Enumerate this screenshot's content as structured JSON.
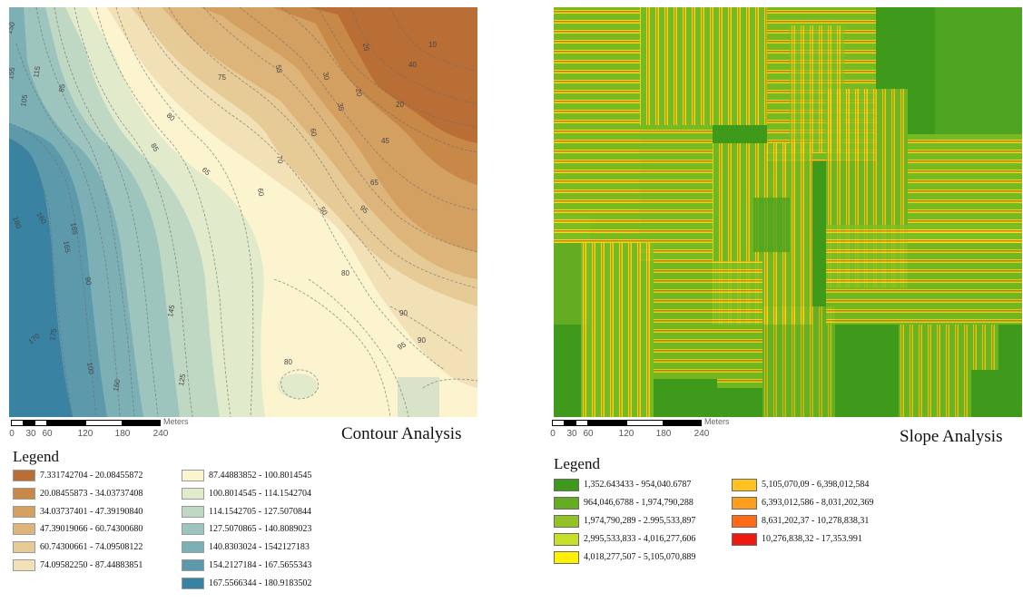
{
  "contour_panel": {
    "title": "Contour Analysis",
    "scale_bar": {
      "unit": "Meters",
      "ticks": [
        "0",
        "30",
        "60",
        "120",
        "180",
        "240"
      ]
    },
    "legend": {
      "title": "Legend",
      "items": [
        {
          "label": "7.331742704 - 20.08455872",
          "color": "#b86e35"
        },
        {
          "label": "20.08455873 - 34.03737408",
          "color": "#c78848"
        },
        {
          "label": "34.03737401 - 47.39190840",
          "color": "#d4a062"
        },
        {
          "label": "47.39019066 - 60.74300680",
          "color": "#ddb47a"
        },
        {
          "label": "60.74300661 - 74.09508122",
          "color": "#e7cb97"
        },
        {
          "label": "74.09582250 - 87.44883851",
          "color": "#f2e0b6"
        },
        {
          "label": "87.44883852 - 100.8014545",
          "color": "#fbf4cf"
        },
        {
          "label": "100.8014545 - 114.1542704",
          "color": "#e1ebcc"
        },
        {
          "label": "114.1542705 - 127.5070844",
          "color": "#bfd8c4"
        },
        {
          "label": "127.5070865 - 140.8089023",
          "color": "#9ec4be"
        },
        {
          "label": "140.8303024 - 1542127183",
          "color": "#7cb0b4"
        },
        {
          "label": "154.2127184 - 167.5655343",
          "color": "#5b99ab"
        },
        {
          "label": "167.5566344 - 180.9183502",
          "color": "#3a82a2"
        }
      ]
    },
    "contour_labels": [
      "150",
      "155",
      "105",
      "115",
      "160",
      "165",
      "180",
      "85",
      "90",
      "100",
      "170",
      "175",
      "165",
      "150",
      "145",
      "125",
      "75",
      "80",
      "70",
      "60",
      "55",
      "50",
      "65",
      "95",
      "95",
      "90",
      "80",
      "20",
      "35",
      "30",
      "25",
      "10",
      "45",
      "60",
      "20",
      "40",
      "80",
      "90",
      "65",
      "85"
    ]
  },
  "slope_panel": {
    "title": "Slope Analysis",
    "scale_bar": {
      "unit": "Meters",
      "ticks": [
        "0",
        "30",
        "60",
        "120",
        "180",
        "240"
      ]
    },
    "legend": {
      "title": "Legend",
      "items": [
        {
          "label": "1,352.643433 - 954,040.6787",
          "color": "#3f9a1c"
        },
        {
          "label": "964,046,6788 - 1,974,790,288",
          "color": "#64ac22"
        },
        {
          "label": "1,974,790,289 - 2.995,533,897",
          "color": "#93c226"
        },
        {
          "label": "2,995,533,833 - 4,016,277,606",
          "color": "#c9de26"
        },
        {
          "label": "4,018,277,507 - 5,105,070,889",
          "color": "#fff000"
        },
        {
          "label": "5,105,070,09 - 6,398,012,584",
          "color": "#ffc21e"
        },
        {
          "label": "6,393,012,586 - 8,031,202,369",
          "color": "#ff9d1c"
        },
        {
          "label": "8,631,202,37 - 10,278,838,31",
          "color": "#ff6a14"
        },
        {
          "label": "10,276,838,32 - 17,353.991",
          "color": "#ee1a10"
        }
      ]
    }
  }
}
